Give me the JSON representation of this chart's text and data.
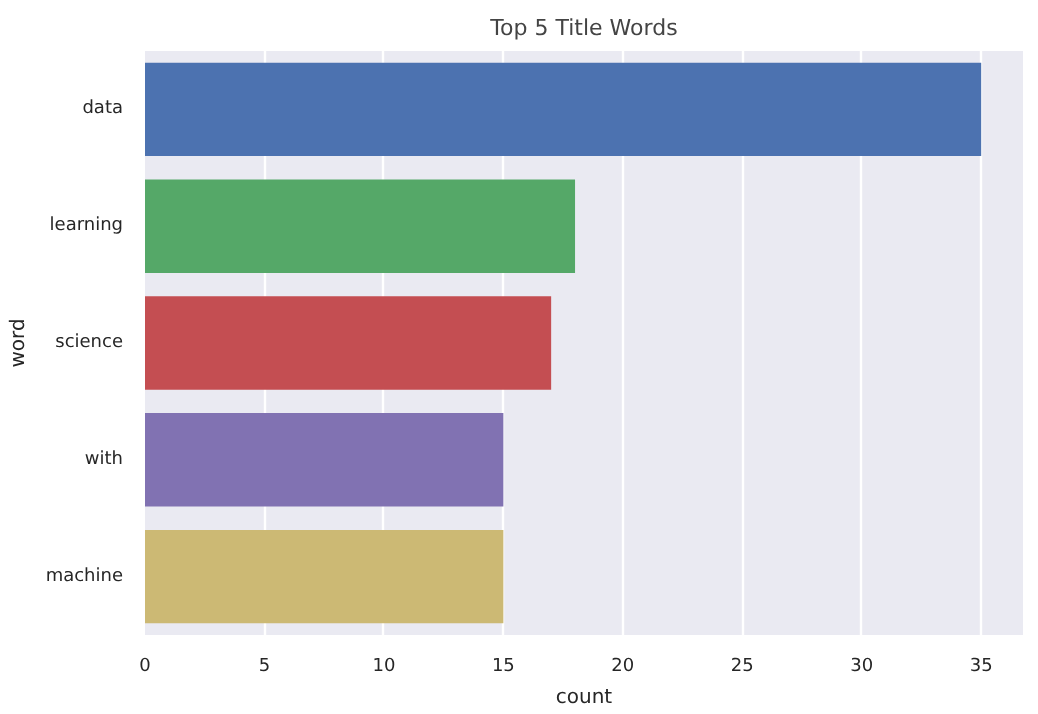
{
  "chart_data": {
    "type": "bar",
    "orientation": "horizontal",
    "title": "Top 5 Title Words",
    "xlabel": "count",
    "ylabel": "word",
    "categories": [
      "data",
      "learning",
      "science",
      "with",
      "machine"
    ],
    "values": [
      35,
      18,
      17,
      15,
      15
    ],
    "colors": [
      "#4c72b0",
      "#55a868",
      "#c44e52",
      "#8172b2",
      "#ccb974"
    ],
    "xlim": [
      0,
      36.75
    ],
    "xticks": [
      0,
      5,
      10,
      15,
      20,
      25,
      30,
      35
    ],
    "grid": "x"
  }
}
